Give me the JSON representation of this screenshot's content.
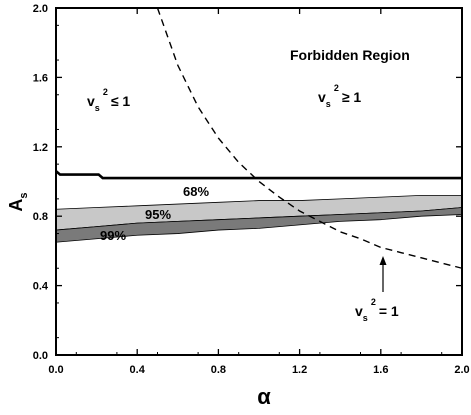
{
  "chart_data": {
    "type": "area",
    "xlabel": "α",
    "ylabel": "A",
    "ylabel_sub": "s",
    "xlim": [
      0.0,
      2.0
    ],
    "ylim": [
      0.0,
      2.0
    ],
    "x_ticks": [
      0.0,
      0.4,
      0.8,
      1.2,
      1.6,
      2.0
    ],
    "y_ticks": [
      0.0,
      0.4,
      0.8,
      1.2,
      1.6,
      2.0
    ],
    "x_tick_labels": [
      "0.0",
      "0.4",
      "0.8",
      "1.2",
      "1.6",
      "2.0"
    ],
    "y_tick_labels": [
      "0.0",
      "0.4",
      "0.8",
      "1.2",
      "1.6",
      "2.0"
    ],
    "grid": false,
    "colors": {
      "band95": "#c8c8c8",
      "band99": "#7a7a7a",
      "line": "#000000"
    },
    "band_99": {
      "x": [
        0.0,
        0.2,
        0.4,
        0.6,
        0.8,
        1.0,
        1.2,
        1.4,
        1.6,
        1.8,
        2.0
      ],
      "lower": [
        0.65,
        0.67,
        0.69,
        0.7,
        0.72,
        0.73,
        0.75,
        0.77,
        0.78,
        0.8,
        0.81
      ],
      "upper": [
        0.72,
        0.74,
        0.76,
        0.77,
        0.78,
        0.79,
        0.8,
        0.81,
        0.82,
        0.83,
        0.85
      ]
    },
    "band_95": {
      "x": [
        0.0,
        0.2,
        0.4,
        0.6,
        0.8,
        1.0,
        1.2,
        1.4,
        1.6,
        1.8,
        2.0
      ],
      "lower": [
        0.72,
        0.74,
        0.76,
        0.77,
        0.78,
        0.79,
        0.8,
        0.81,
        0.82,
        0.83,
        0.85
      ],
      "upper": [
        0.84,
        0.85,
        0.86,
        0.87,
        0.88,
        0.89,
        0.89,
        0.9,
        0.91,
        0.92,
        0.92
      ]
    },
    "line_68": {
      "x": [
        0.0,
        0.02,
        0.04,
        0.21,
        0.23,
        2.0
      ],
      "y": [
        1.06,
        1.04,
        1.04,
        1.04,
        1.02,
        1.02
      ]
    },
    "dashed_curve_note": "v_s^2 = 1 boundary",
    "dashed_curve": {
      "x": [
        0.5,
        0.6,
        0.7,
        0.8,
        0.9,
        1.0,
        1.1,
        1.2,
        1.3,
        1.4,
        1.5,
        1.6,
        1.7,
        1.8,
        1.9,
        2.0
      ],
      "y": [
        2.0,
        1.67,
        1.43,
        1.25,
        1.11,
        1.0,
        0.91,
        0.83,
        0.77,
        0.71,
        0.67,
        0.62,
        0.59,
        0.56,
        0.53,
        0.5
      ]
    },
    "annotations": {
      "forbidden": "Forbidden Region",
      "left_region_v": "v",
      "left_region_sub": "s",
      "left_region_sup": "2",
      "left_region_rel": "≤ 1",
      "right_region_v": "v",
      "right_region_sub": "s",
      "right_region_sup": "2",
      "right_region_rel": "≥ 1",
      "boundary_v": "v",
      "boundary_sub": "s",
      "boundary_sup": "2",
      "boundary_rel": "= 1",
      "label_68": "68%",
      "label_95": "95%",
      "label_99": "99%"
    }
  }
}
